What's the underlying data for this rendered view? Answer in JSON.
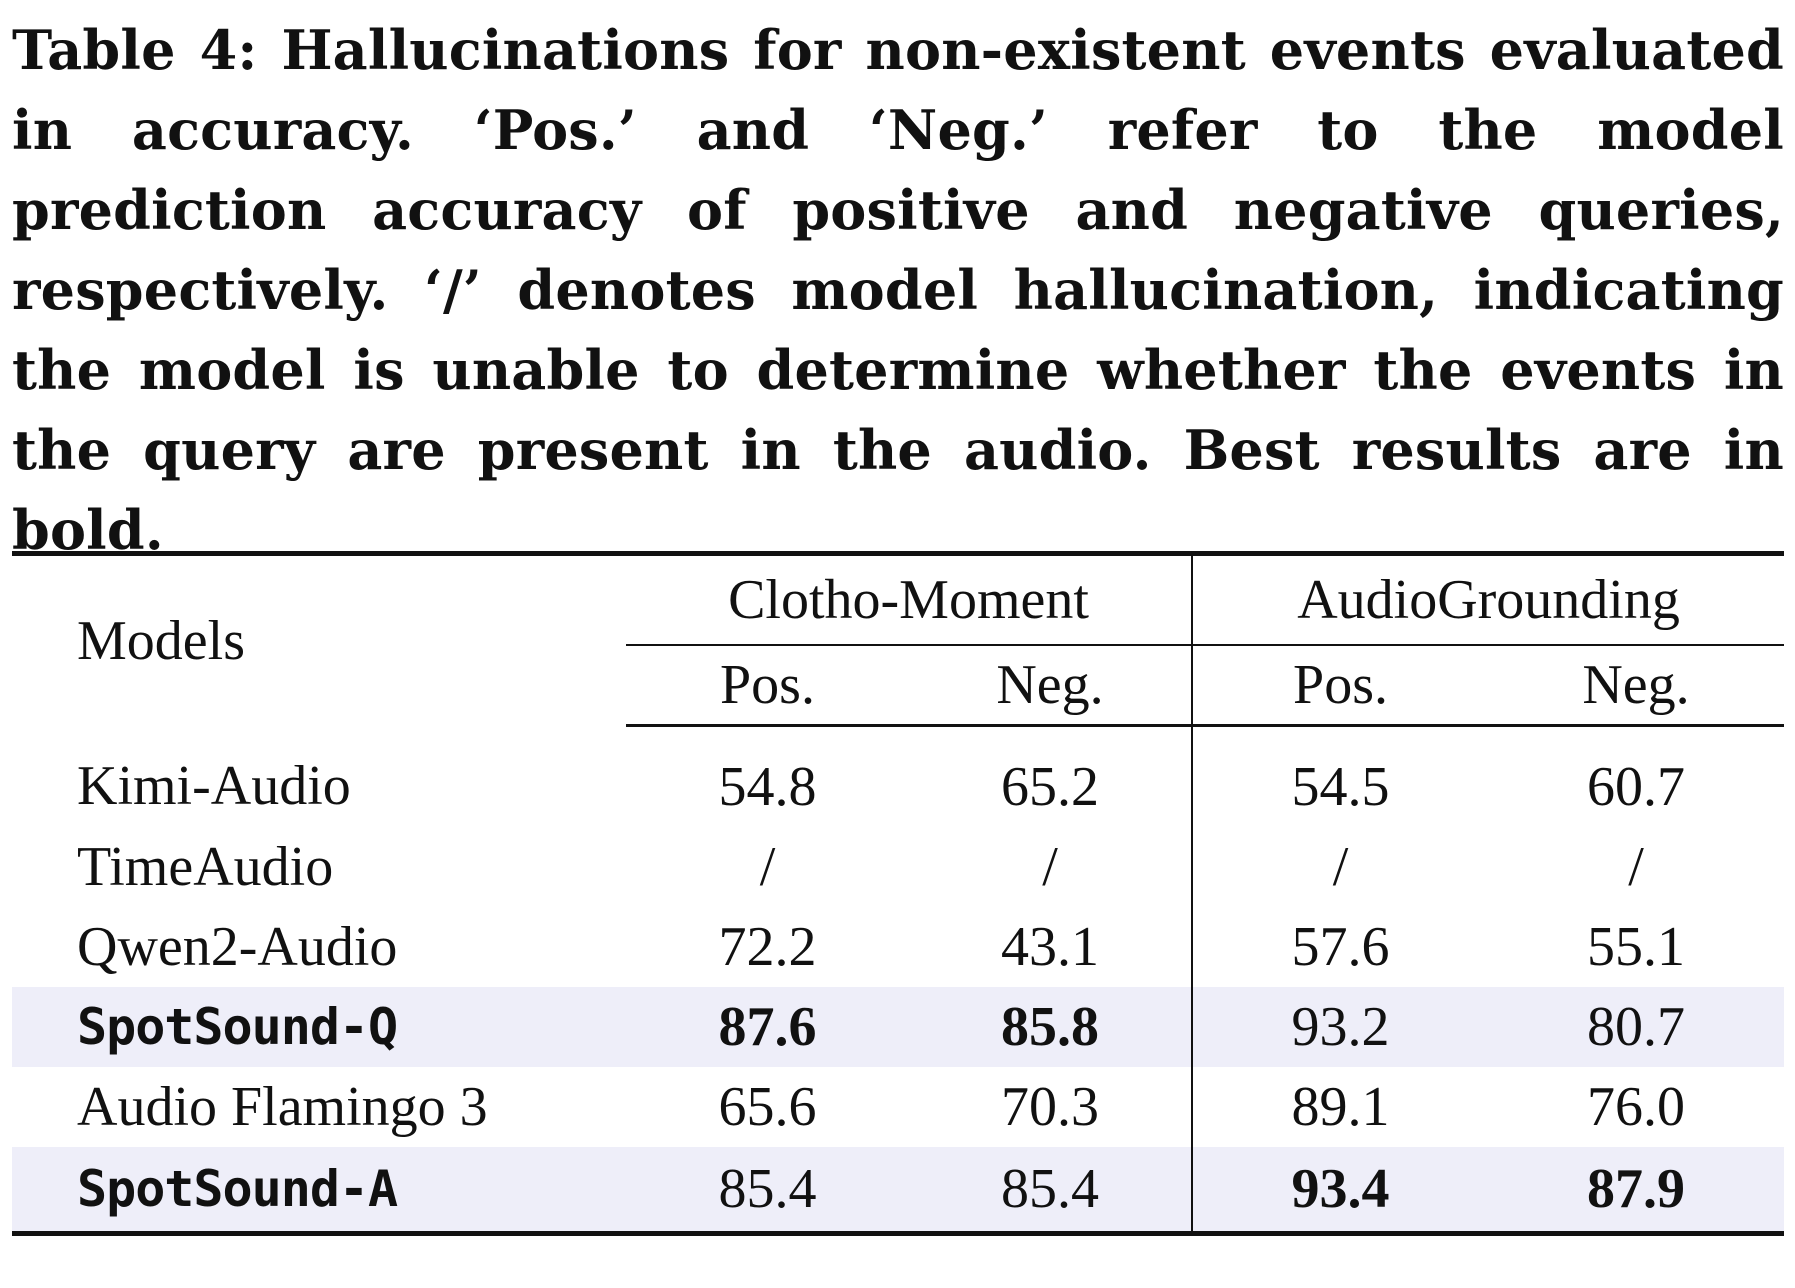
{
  "caption": "Table 4: Hallucinations for non-existent events evaluated in accuracy. ‘Pos.’ and ‘Neg.’ refer to the model prediction accuracy of positive and negative queries, respectively. ‘/’ denotes model hallucination, indicating the model is unable to determine whether the events in the query are present in the audio. Best results are in bold.",
  "header": {
    "models": "Models",
    "group_a": "Clotho-Moment",
    "group_b": "AudioGrounding",
    "pos": "Pos.",
    "neg": "Neg."
  },
  "rows": [
    {
      "model": "Kimi-Audio",
      "cm_pos": "54.8",
      "cm_neg": "65.2",
      "ag_pos": "54.5",
      "ag_neg": "60.7"
    },
    {
      "model": "TimeAudio",
      "cm_pos": "/",
      "cm_neg": "/",
      "ag_pos": "/",
      "ag_neg": "/"
    },
    {
      "model": "Qwen2-Audio",
      "cm_pos": "72.2",
      "cm_neg": "43.1",
      "ag_pos": "57.6",
      "ag_neg": "55.1"
    },
    {
      "model": "SpotSound-Q",
      "cm_pos": "87.6",
      "cm_neg": "85.8",
      "ag_pos": "93.2",
      "ag_neg": "80.7"
    },
    {
      "model": "Audio Flamingo 3",
      "cm_pos": "65.6",
      "cm_neg": "70.3",
      "ag_pos": "89.1",
      "ag_neg": "76.0"
    },
    {
      "model": "SpotSound-A",
      "cm_pos": "85.4",
      "cm_neg": "85.4",
      "ag_pos": "93.4",
      "ag_neg": "87.9"
    }
  ],
  "colors": {
    "highlight_row": "#eeeef9",
    "text": "#111111"
  }
}
